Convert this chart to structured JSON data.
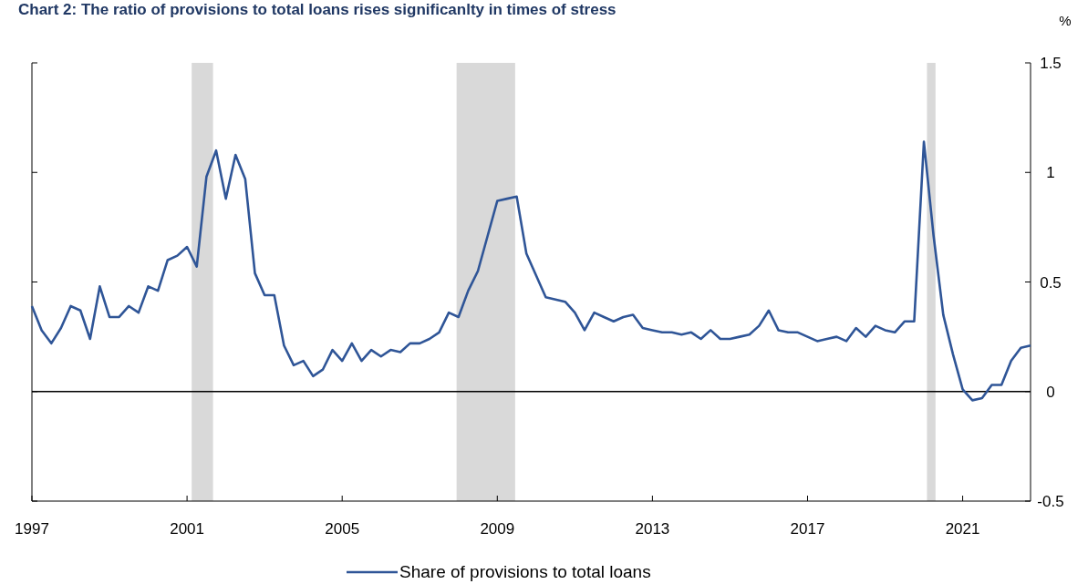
{
  "chart_data": {
    "type": "line",
    "title": "Chart 2: The ratio of provisions to total loans rises significanlty in times of stress",
    "ylabel": "%",
    "x": [
      1997,
      1997.25,
      1997.5,
      1997.75,
      1998,
      1998.25,
      1998.5,
      1998.75,
      1999,
      1999.25,
      1999.5,
      1999.75,
      2000,
      2000.25,
      2000.5,
      2000.75,
      2001,
      2001.25,
      2001.5,
      2001.75,
      2002,
      2002.25,
      2002.5,
      2002.75,
      2003,
      2003.25,
      2003.5,
      2003.75,
      2004,
      2004.25,
      2004.5,
      2004.75,
      2005,
      2005.25,
      2005.5,
      2005.75,
      2006,
      2006.25,
      2006.5,
      2006.75,
      2007,
      2007.25,
      2007.5,
      2007.75,
      2008,
      2008.25,
      2008.5,
      2008.75,
      2009,
      2009.25,
      2009.5,
      2009.75,
      2010,
      2010.25,
      2010.5,
      2010.75,
      2011,
      2011.25,
      2011.5,
      2011.75,
      2012,
      2012.25,
      2012.5,
      2012.75,
      2013,
      2013.25,
      2013.5,
      2013.75,
      2014,
      2014.25,
      2014.5,
      2014.75,
      2015,
      2015.25,
      2015.5,
      2015.75,
      2016,
      2016.25,
      2016.5,
      2016.75,
      2017,
      2017.25,
      2017.5,
      2017.75,
      2018,
      2018.25,
      2018.5,
      2018.75,
      2019,
      2019.25,
      2019.5,
      2019.75,
      2020,
      2020.25,
      2020.5,
      2020.75,
      2021,
      2021.25,
      2021.5,
      2021.75,
      2022,
      2022.25,
      2022.5,
      2022.75
    ],
    "series": [
      {
        "name": "Share of provisions to total loans",
        "color": "#2f5597",
        "values": [
          0.39,
          0.28,
          0.22,
          0.29,
          0.39,
          0.37,
          0.24,
          0.48,
          0.34,
          0.34,
          0.39,
          0.36,
          0.48,
          0.46,
          0.6,
          0.62,
          0.66,
          0.57,
          0.98,
          1.1,
          0.88,
          1.08,
          0.97,
          0.54,
          0.44,
          0.44,
          0.21,
          0.12,
          0.14,
          0.07,
          0.1,
          0.19,
          0.14,
          0.22,
          0.14,
          0.19,
          0.16,
          0.19,
          0.18,
          0.22,
          0.22,
          0.24,
          0.27,
          0.36,
          0.34,
          0.46,
          0.55,
          0.71,
          0.87,
          0.88,
          0.89,
          0.63,
          0.53,
          0.43,
          0.42,
          0.41,
          0.36,
          0.28,
          0.36,
          0.34,
          0.32,
          0.34,
          0.35,
          0.29,
          0.28,
          0.27,
          0.27,
          0.26,
          0.27,
          0.24,
          0.28,
          0.24,
          0.24,
          0.25,
          0.26,
          0.3,
          0.37,
          0.28,
          0.27,
          0.27,
          0.25,
          0.23,
          0.24,
          0.25,
          0.23,
          0.29,
          0.25,
          0.3,
          0.28,
          0.27,
          0.32,
          0.32,
          1.14,
          0.71,
          0.35,
          0.17,
          0.01,
          -0.04,
          -0.03,
          0.03,
          0.03,
          0.14,
          0.2,
          0.21
        ]
      }
    ],
    "xlim": [
      1997,
      2022.75
    ],
    "xticks": [
      1997,
      2001,
      2005,
      2009,
      2013,
      2017,
      2021
    ],
    "ylim": [
      -0.5,
      1.5
    ],
    "yticks": [
      1.5,
      1,
      0.5,
      0,
      -0.5
    ],
    "ref_lines": [
      {
        "axis": "y",
        "value": 0,
        "color": "#000000"
      }
    ],
    "bands": [
      {
        "axis": "x",
        "from": 2001.12,
        "to": 2001.67,
        "color": "#d9d9d9"
      },
      {
        "axis": "x",
        "from": 2007.95,
        "to": 2009.46,
        "color": "#d9d9d9"
      },
      {
        "axis": "x",
        "from": 2020.08,
        "to": 2020.3,
        "color": "#d9d9d9"
      }
    ],
    "legend": "bottom",
    "grid": false
  }
}
